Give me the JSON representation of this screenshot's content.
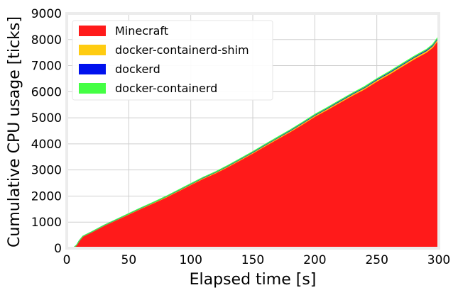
{
  "chart_data": {
    "type": "area",
    "stacked": true,
    "xlabel": "Elapsed time [s]",
    "ylabel": "Cumulative CPU usage [ticks]",
    "xlim": [
      0,
      300
    ],
    "ylim": [
      0,
      9000
    ],
    "xticks": [
      0,
      50,
      100,
      150,
      200,
      250,
      300
    ],
    "yticks": [
      0,
      1000,
      2000,
      3000,
      4000,
      5000,
      6000,
      7000,
      8000,
      9000
    ],
    "grid": true,
    "legend_position": "top-left",
    "x": [
      5,
      8,
      10,
      13,
      16,
      20,
      30,
      40,
      50,
      60,
      70,
      80,
      90,
      100,
      110,
      120,
      130,
      140,
      150,
      160,
      170,
      180,
      190,
      200,
      210,
      220,
      230,
      240,
      250,
      260,
      270,
      280,
      290,
      295,
      300
    ],
    "series": [
      {
        "name": "Minecraft",
        "color": "#ff1a1a",
        "values": [
          0,
          120,
          280,
          450,
          520,
          610,
          860,
          1080,
          1300,
          1520,
          1730,
          1950,
          2190,
          2430,
          2670,
          2880,
          3120,
          3380,
          3640,
          3920,
          4190,
          4460,
          4750,
          5050,
          5310,
          5580,
          5850,
          6100,
          6400,
          6670,
          6960,
          7250,
          7510,
          7700,
          8020
        ]
      },
      {
        "name": "docker-containerd-shim",
        "color": "#ffcc11",
        "values": [
          0,
          2,
          4,
          6,
          8,
          10,
          12,
          14,
          16,
          18,
          20,
          22,
          24,
          26,
          28,
          30,
          32,
          34,
          36,
          38,
          40,
          42,
          44,
          46,
          48,
          50,
          52,
          54,
          56,
          58,
          60,
          62,
          64,
          65,
          66
        ]
      },
      {
        "name": "dockerd",
        "color": "#0011ee",
        "values": [
          0,
          1,
          2,
          3,
          4,
          5,
          6,
          7,
          8,
          9,
          10,
          11,
          12,
          13,
          14,
          15,
          16,
          17,
          18,
          19,
          20,
          21,
          22,
          23,
          24,
          25,
          26,
          27,
          28,
          29,
          30,
          31,
          32,
          32,
          33
        ]
      },
      {
        "name": "docker-containerd",
        "color": "#44ff44",
        "values": [
          0,
          1,
          1,
          2,
          2,
          3,
          3,
          4,
          4,
          5,
          5,
          6,
          6,
          7,
          7,
          8,
          8,
          9,
          9,
          10,
          10,
          11,
          11,
          12,
          12,
          13,
          13,
          14,
          14,
          15,
          15,
          16,
          16,
          16,
          17
        ]
      }
    ]
  }
}
